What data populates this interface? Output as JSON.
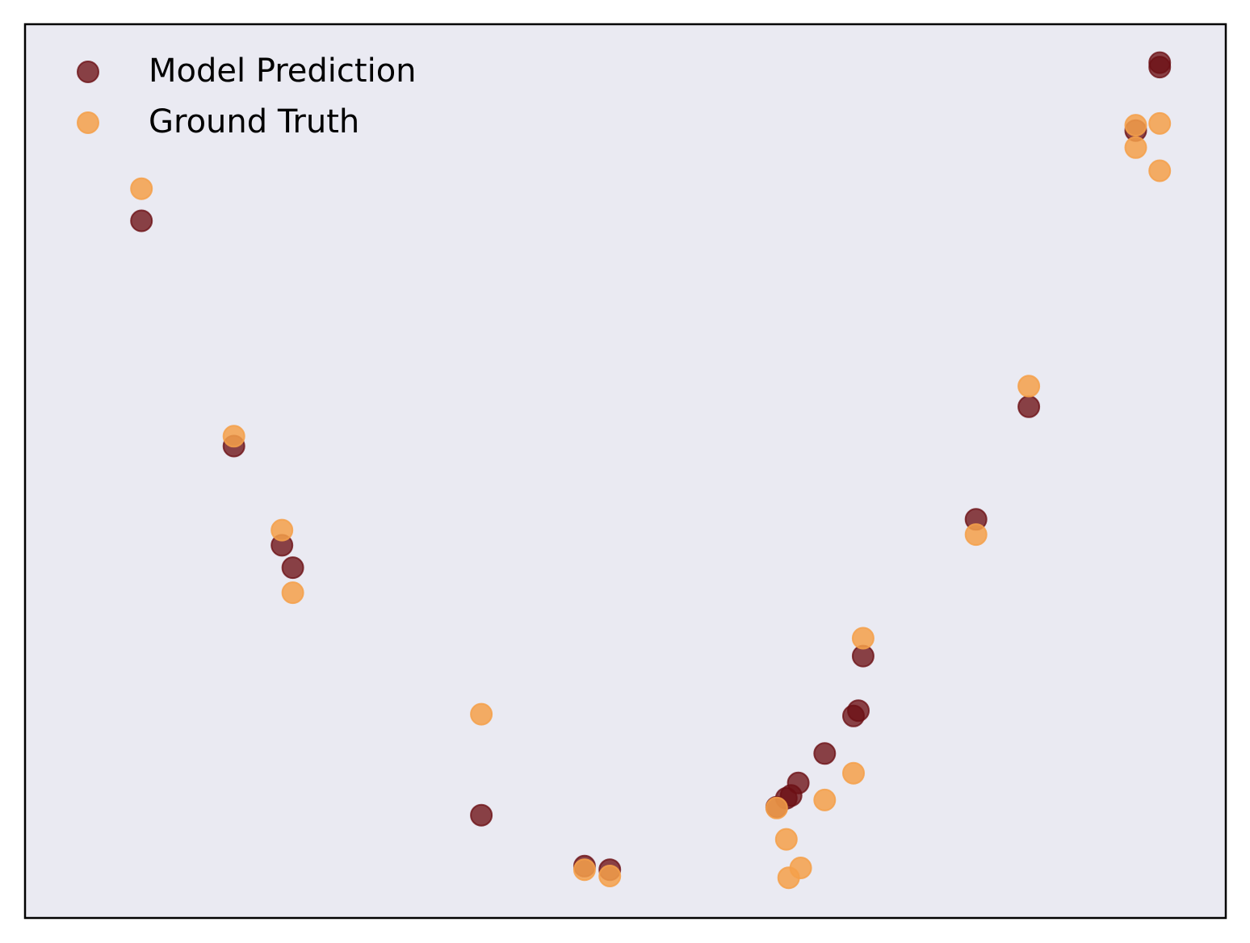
{
  "chart_data": {
    "type": "scatter",
    "xlim": [
      0,
      1
    ],
    "ylim": [
      0,
      1
    ],
    "x_ticks_visible": false,
    "y_ticks_visible": false,
    "grid": false,
    "legend_position": "top-left",
    "background_color": "#eaeaf2",
    "series": [
      {
        "name": "Model Prediction",
        "color": "#6b0f14",
        "x": [
          0.097,
          0.174,
          0.214,
          0.223,
          0.38,
          0.466,
          0.487,
          0.626,
          0.634,
          0.638,
          0.644,
          0.666,
          0.69,
          0.694,
          0.698,
          0.792,
          0.836,
          0.925,
          0.945,
          0.945
        ],
        "y": [
          0.78,
          0.528,
          0.417,
          0.392,
          0.115,
          0.058,
          0.054,
          0.124,
          0.134,
          0.137,
          0.151,
          0.184,
          0.226,
          0.232,
          0.293,
          0.446,
          0.572,
          0.881,
          0.952,
          0.957
        ]
      },
      {
        "name": "Ground Truth",
        "color": "#f5a04a",
        "x": [
          0.097,
          0.174,
          0.214,
          0.223,
          0.38,
          0.466,
          0.487,
          0.626,
          0.634,
          0.636,
          0.646,
          0.666,
          0.69,
          0.698,
          0.792,
          0.836,
          0.925,
          0.925,
          0.945,
          0.945
        ],
        "y": [
          0.816,
          0.539,
          0.434,
          0.364,
          0.228,
          0.054,
          0.047,
          0.123,
          0.088,
          0.045,
          0.056,
          0.132,
          0.162,
          0.313,
          0.429,
          0.595,
          0.862,
          0.887,
          0.836,
          0.889
        ]
      }
    ]
  }
}
